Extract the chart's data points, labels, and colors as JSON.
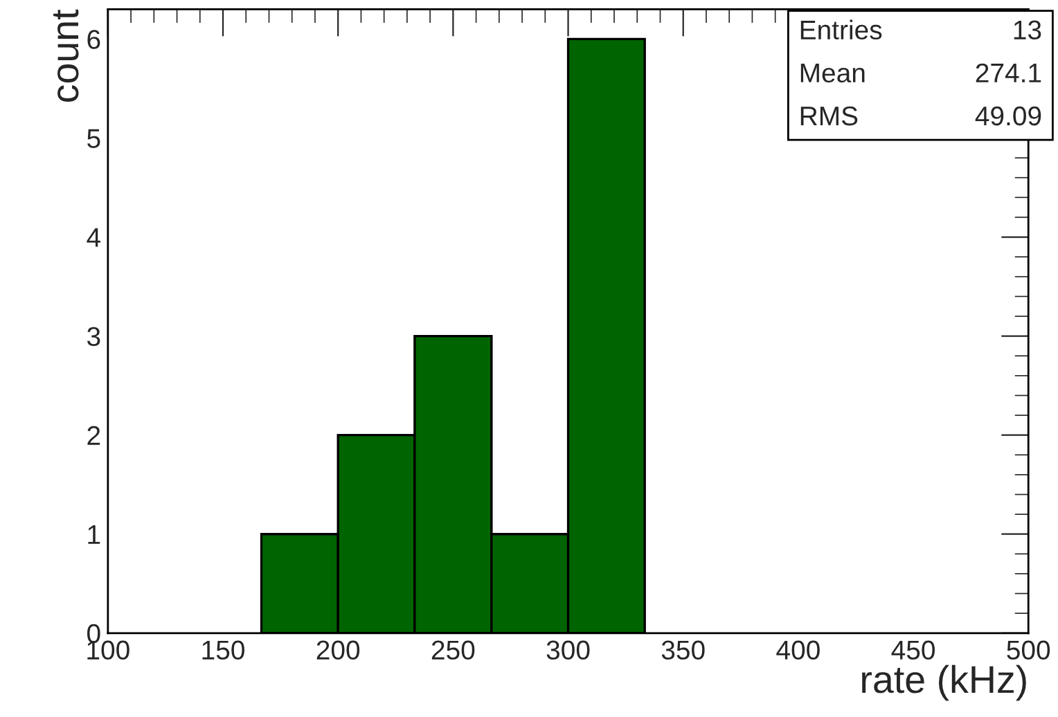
{
  "chart_data": {
    "type": "histogram",
    "bins": [
      166.7,
      200,
      233.3,
      266.7,
      300,
      333.3
    ],
    "values": [
      1,
      2,
      3,
      1,
      6
    ],
    "color": "#006400",
    "xlabel": "rate (kHz)",
    "ylabel": "count",
    "xlim": [
      100,
      500
    ],
    "xticks": [
      100,
      150,
      200,
      250,
      300,
      350,
      400,
      450,
      500
    ],
    "ylim": [
      0,
      6.3
    ],
    "yticks": [
      0,
      1,
      2,
      3,
      4,
      5,
      6
    ],
    "annotations": [
      "Entries",
      "13",
      "Mean",
      "274.1",
      "RMS",
      "49.09"
    ],
    "grid": false,
    "legend": false
  }
}
